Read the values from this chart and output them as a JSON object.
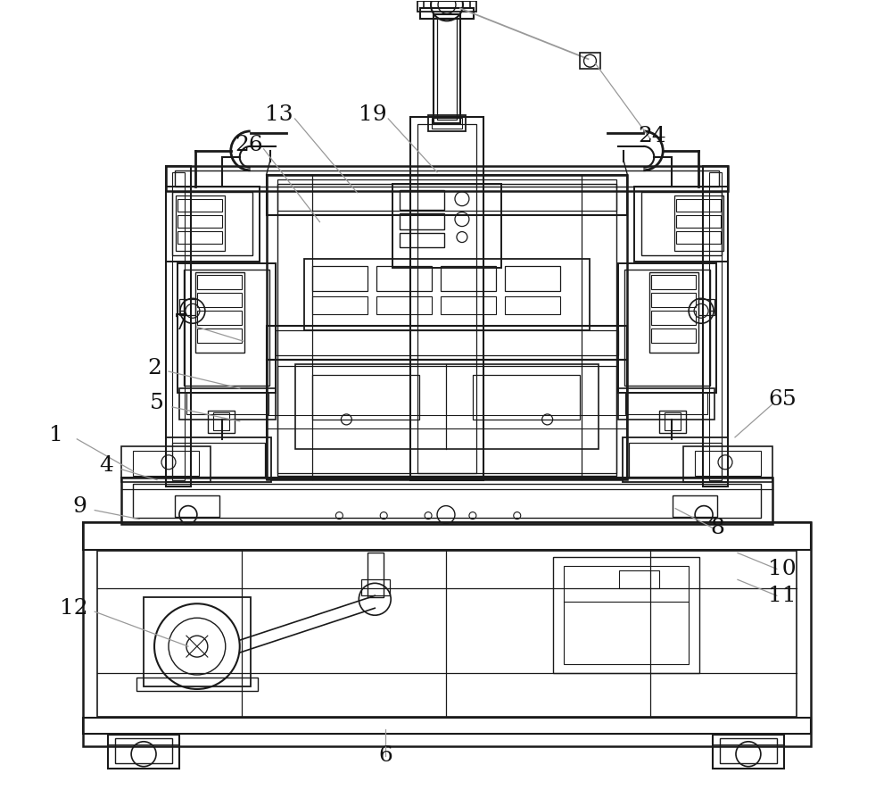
{
  "bg_color": "#ffffff",
  "line_color": "#1a1a1a",
  "leader_line_color": "#999999",
  "figsize": [
    10.0,
    8.85
  ],
  "dpi": 100,
  "labels": [
    [
      "1",
      62,
      488
    ],
    [
      "2",
      172,
      412
    ],
    [
      "4",
      118,
      522
    ],
    [
      "5",
      175,
      452
    ],
    [
      "6",
      432,
      848
    ],
    [
      "7",
      202,
      362
    ],
    [
      "8",
      805,
      592
    ],
    [
      "9",
      88,
      568
    ],
    [
      "10",
      878,
      638
    ],
    [
      "11",
      878,
      668
    ],
    [
      "12",
      82,
      682
    ],
    [
      "13",
      312,
      128
    ],
    [
      "19",
      418,
      128
    ],
    [
      "24",
      732,
      152
    ],
    [
      "26",
      278,
      162
    ],
    [
      "65",
      878,
      448
    ]
  ],
  "leader_lines": [
    [
      85,
      492,
      148,
      528
    ],
    [
      188,
      416,
      268,
      435
    ],
    [
      135,
      526,
      175,
      538
    ],
    [
      192,
      456,
      268,
      472
    ],
    [
      432,
      848,
      432,
      818
    ],
    [
      220,
      366,
      272,
      382
    ],
    [
      800,
      592,
      758,
      570
    ],
    [
      105,
      572,
      155,
      582
    ],
    [
      872,
      638,
      828,
      620
    ],
    [
      872,
      668,
      828,
      650
    ],
    [
      105,
      686,
      210,
      725
    ],
    [
      330,
      132,
      400,
      215
    ],
    [
      435,
      132,
      490,
      192
    ],
    [
      730,
      155,
      668,
      70
    ],
    [
      295,
      166,
      358,
      248
    ],
    [
      868,
      452,
      825,
      490
    ]
  ]
}
